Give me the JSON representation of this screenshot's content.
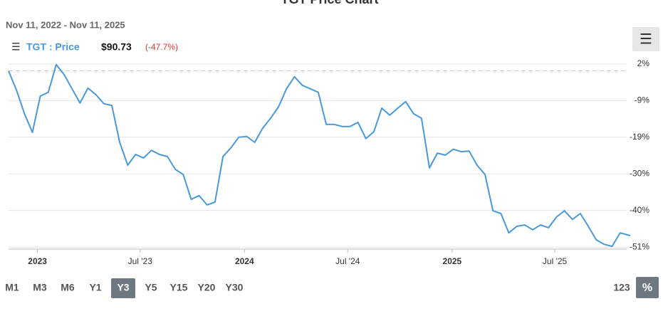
{
  "chart_data": {
    "type": "line",
    "title": "TGT Price Chart",
    "subtitle": "Nov 11, 2022 - Nov 11, 2025",
    "legend_price": "$90.73",
    "legend_change": "(-47.7%)",
    "x": [
      "2022-11-11",
      "2022-11-25",
      "2022-12-09",
      "2022-12-23",
      "2023-01-06",
      "2023-01-20",
      "2023-02-03",
      "2023-02-17",
      "2023-03-03",
      "2023-03-17",
      "2023-03-31",
      "2023-04-14",
      "2023-04-28",
      "2023-05-12",
      "2023-05-26",
      "2023-06-09",
      "2023-06-23",
      "2023-07-07",
      "2023-07-21",
      "2023-08-04",
      "2023-08-18",
      "2023-09-01",
      "2023-09-15",
      "2023-09-29",
      "2023-10-13",
      "2023-10-27",
      "2023-11-10",
      "2023-11-24",
      "2023-12-08",
      "2023-12-22",
      "2024-01-05",
      "2024-01-19",
      "2024-02-02",
      "2024-02-16",
      "2024-03-01",
      "2024-03-15",
      "2024-03-29",
      "2024-04-12",
      "2024-04-26",
      "2024-05-10",
      "2024-05-24",
      "2024-06-07",
      "2024-06-21",
      "2024-07-05",
      "2024-07-19",
      "2024-08-02",
      "2024-08-16",
      "2024-08-30",
      "2024-09-13",
      "2024-09-27",
      "2024-10-11",
      "2024-10-25",
      "2024-11-08",
      "2024-11-22",
      "2024-12-06",
      "2024-12-20",
      "2025-01-03",
      "2025-01-17",
      "2025-01-31",
      "2025-02-14",
      "2025-02-28",
      "2025-03-14",
      "2025-03-28",
      "2025-04-11",
      "2025-04-25",
      "2025-05-09",
      "2025-05-23",
      "2025-06-06",
      "2025-06-20",
      "2025-07-04",
      "2025-07-18",
      "2025-08-01",
      "2025-08-15",
      "2025-08-29",
      "2025-09-12",
      "2025-09-26",
      "2025-10-10",
      "2025-10-24",
      "2025-11-07",
      "2025-11-11"
    ],
    "series": [
      {
        "name": "TGT : Price",
        "color": "#4a98d8",
        "values": [
          0,
          -5.6,
          -12.4,
          -17.8,
          -7.3,
          -6.2,
          1.8,
          -1.1,
          -5.2,
          -9.3,
          -5.0,
          -6.9,
          -9.5,
          -10.0,
          -20.7,
          -27.3,
          -24.2,
          -25.2,
          -23.0,
          -24.2,
          -24.8,
          -28.5,
          -30.0,
          -37.2,
          -36.1,
          -38.8,
          -38.0,
          -24.8,
          -22.3,
          -19.2,
          -19.0,
          -20.7,
          -16.6,
          -13.7,
          -10.4,
          -5.2,
          -1.7,
          -4.2,
          -5.2,
          -6.2,
          -15.5,
          -15.5,
          -16.1,
          -16.1,
          -14.9,
          -19.6,
          -17.6,
          -10.8,
          -12.8,
          -10.8,
          -8.9,
          -12.4,
          -13.7,
          -28.1,
          -23.8,
          -24.4,
          -22.7,
          -23.4,
          -23.2,
          -27.3,
          -30.0,
          -40.5,
          -41.3,
          -46.9,
          -45.0,
          -44.6,
          -46.0,
          -44.6,
          -45.4,
          -42.3,
          -40.5,
          -43.0,
          -41.3,
          -45.0,
          -48.9,
          -50.2,
          -50.8,
          -46.9,
          -47.5,
          -47.7
        ]
      }
    ],
    "xlim": [
      "2022-11-11",
      "2025-11-11"
    ],
    "xticks": [
      {
        "value": "2023-01-01",
        "label": "2023"
      },
      {
        "value": "2023-07-01",
        "label": "Jul '23"
      },
      {
        "value": "2024-01-01",
        "label": "2024"
      },
      {
        "value": "2024-07-01",
        "label": "Jul '24"
      },
      {
        "value": "2025-01-01",
        "label": "2025"
      },
      {
        "value": "2025-07-01",
        "label": "Jul '25"
      }
    ],
    "ylim": [
      -51.6,
      3.0
    ],
    "yticks": [
      {
        "value": 2.0,
        "label": "2%"
      },
      {
        "value": -8.6,
        "label": "-9%"
      },
      {
        "value": -19.2,
        "label": "-19%"
      },
      {
        "value": -29.8,
        "label": "-30%"
      },
      {
        "value": -40.4,
        "label": "-40%"
      },
      {
        "value": -51.0,
        "label": "-51%"
      }
    ],
    "reference_line": 0,
    "grid": true
  },
  "range_buttons": [
    "M1",
    "M3",
    "M6",
    "Y1",
    "Y3",
    "Y5",
    "Y15",
    "Y20",
    "Y30"
  ],
  "active_range": 4,
  "mode_buttons": [
    "123",
    "%"
  ],
  "active_mode": 1
}
